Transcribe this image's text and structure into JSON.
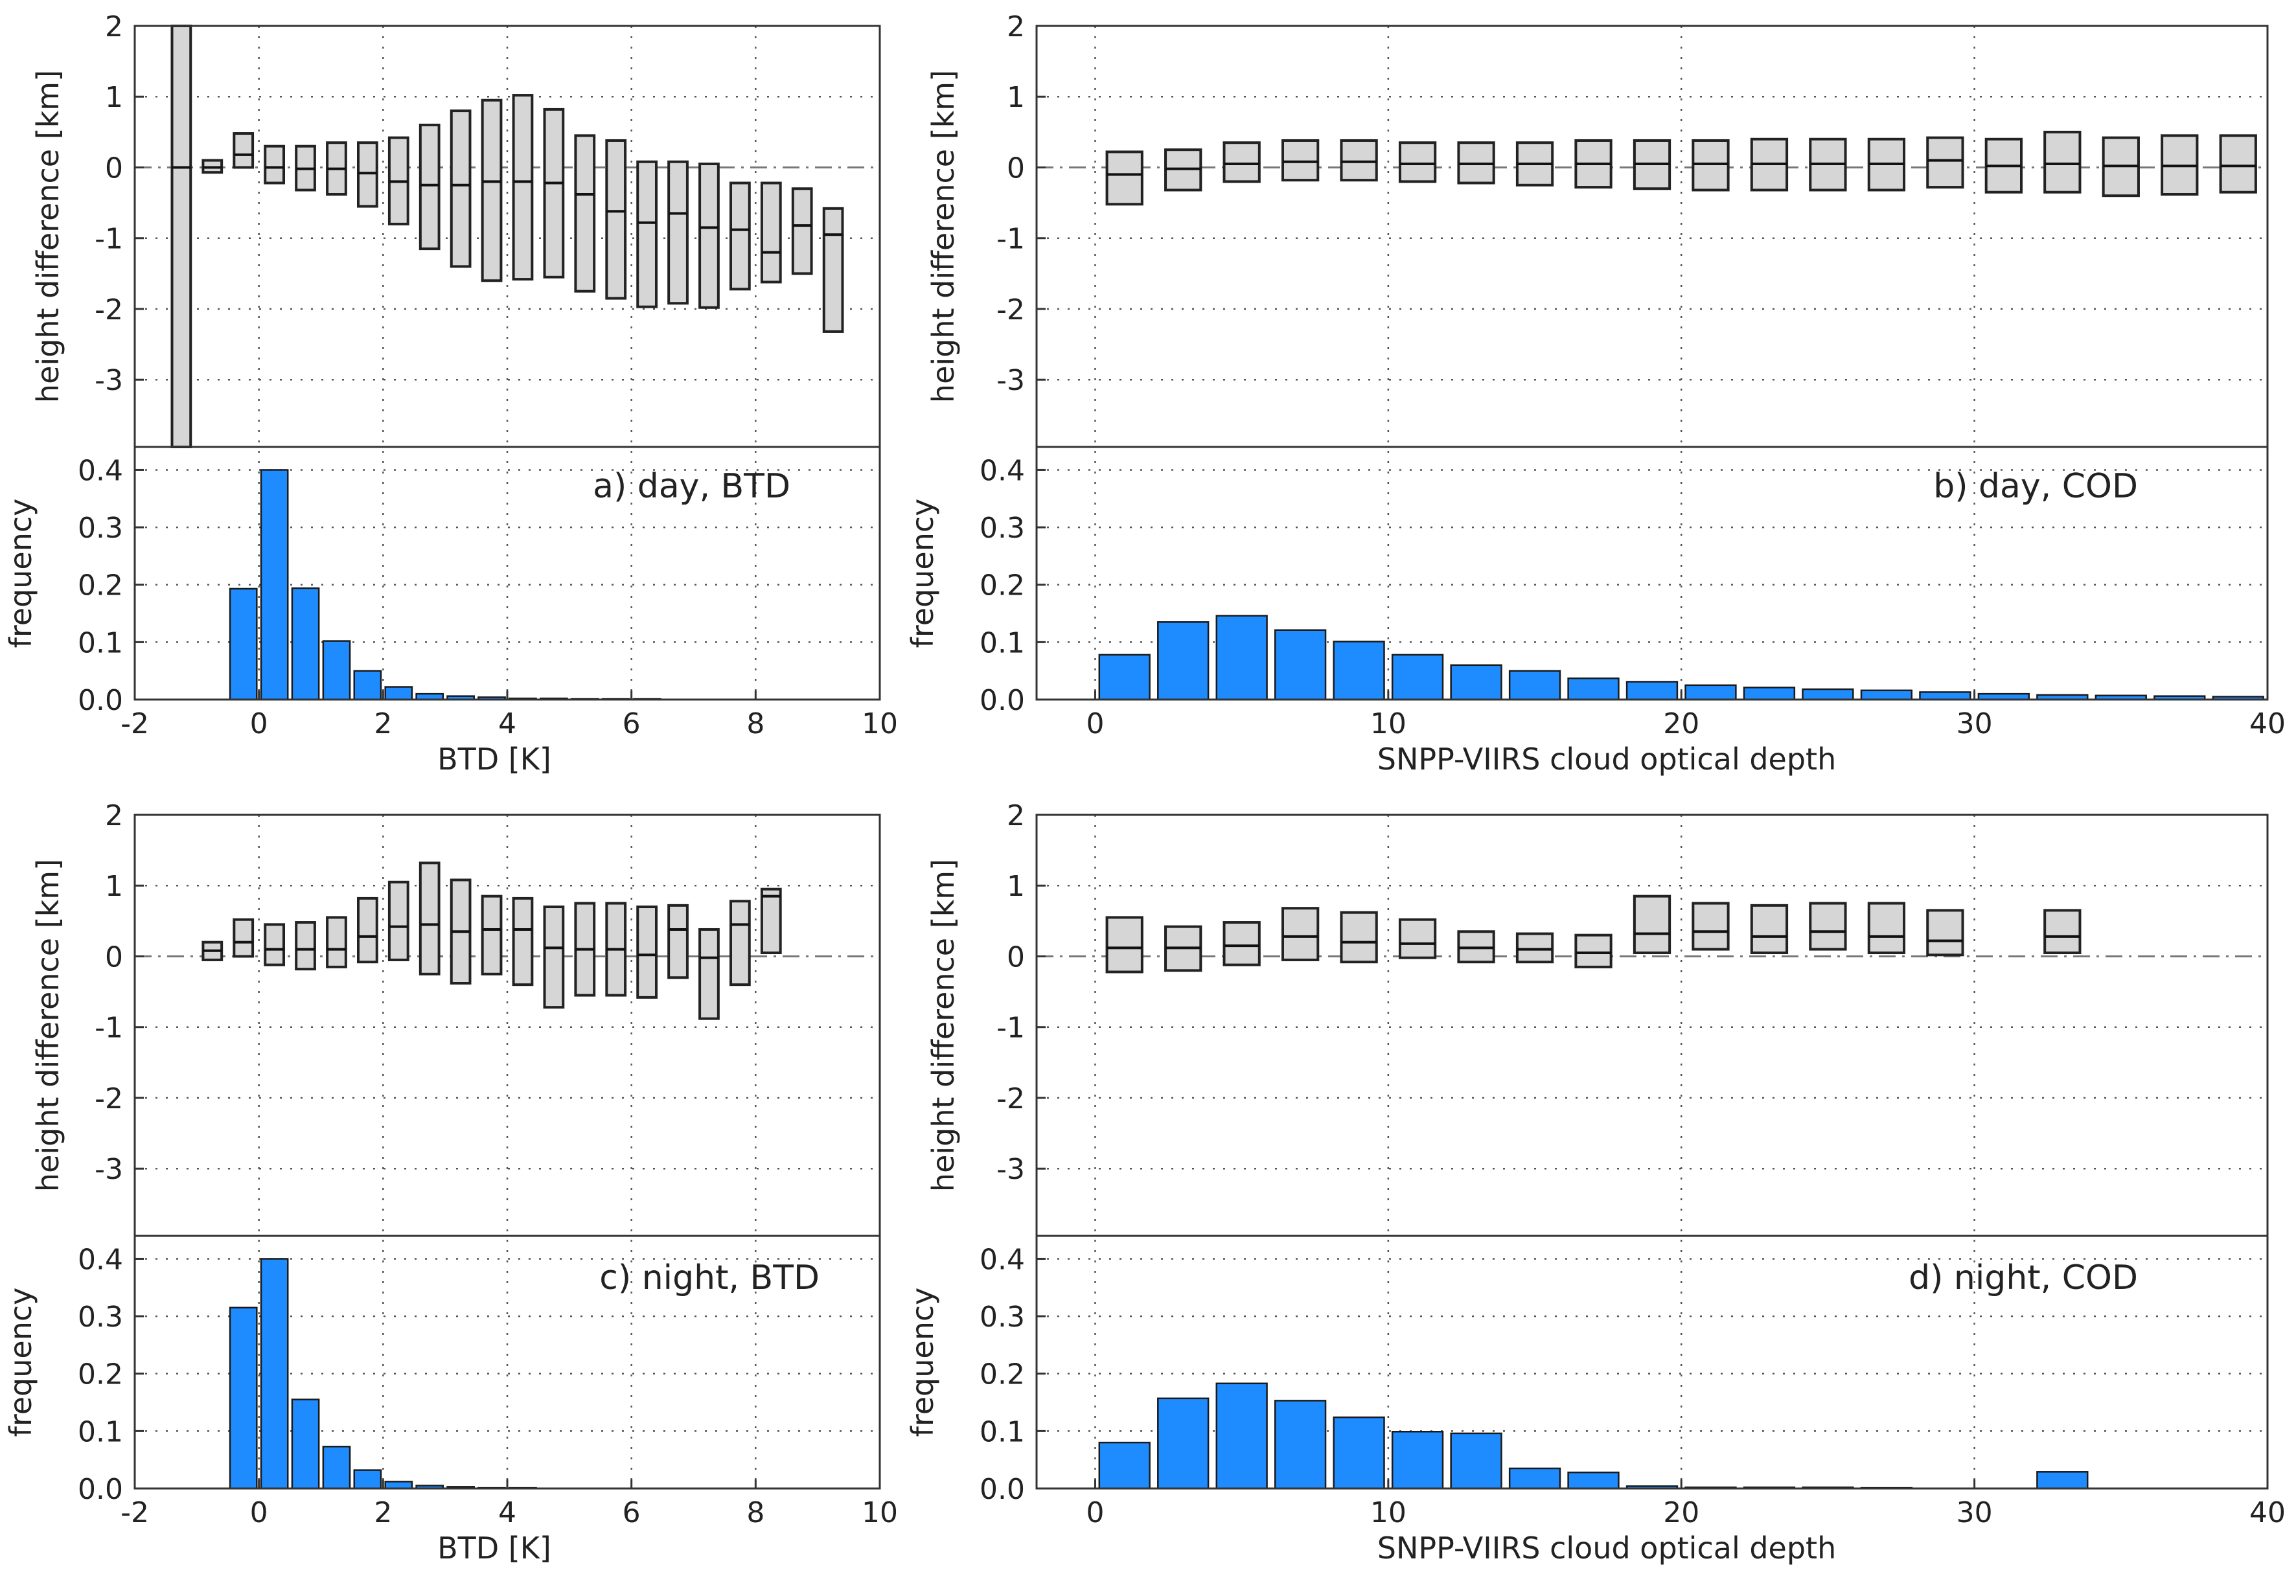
{
  "chart_data": [
    {
      "id": "a",
      "type": "bar",
      "panel_label": "a) day, BTD",
      "xlabel": "BTD [K]",
      "box_ylabel": "height difference [km]",
      "hist_ylabel": "frequency",
      "xlim": [
        -2,
        10
      ],
      "xticks": [
        -2,
        0,
        2,
        4,
        6,
        8,
        10
      ],
      "box_ylim": [
        -3.95,
        2
      ],
      "box_yticks": [
        -3,
        -2,
        -1,
        0,
        1,
        2
      ],
      "hist_ylim": [
        0,
        0.44
      ],
      "hist_yticks": [
        0.0,
        0.1,
        0.2,
        0.3,
        0.4
      ],
      "hist_ytick_labels": [
        "0.0",
        "0.1",
        "0.2",
        "0.3",
        "0.4"
      ],
      "bin_width": 0.5,
      "boxes": [
        {
          "x": -1.25,
          "q1": -4.0,
          "median": 0.0,
          "q3": 2.1
        },
        {
          "x": -0.75,
          "q1": -0.07,
          "median": 0.0,
          "q3": 0.1
        },
        {
          "x": -0.25,
          "q1": 0.0,
          "median": 0.18,
          "q3": 0.48
        },
        {
          "x": 0.25,
          "q1": -0.22,
          "median": 0.0,
          "q3": 0.3
        },
        {
          "x": 0.75,
          "q1": -0.32,
          "median": -0.02,
          "q3": 0.3
        },
        {
          "x": 1.25,
          "q1": -0.38,
          "median": -0.02,
          "q3": 0.35
        },
        {
          "x": 1.75,
          "q1": -0.55,
          "median": -0.08,
          "q3": 0.35
        },
        {
          "x": 2.25,
          "q1": -0.8,
          "median": -0.2,
          "q3": 0.42
        },
        {
          "x": 2.75,
          "q1": -1.15,
          "median": -0.25,
          "q3": 0.6
        },
        {
          "x": 3.25,
          "q1": -1.4,
          "median": -0.25,
          "q3": 0.8
        },
        {
          "x": 3.75,
          "q1": -1.6,
          "median": -0.2,
          "q3": 0.95
        },
        {
          "x": 4.25,
          "q1": -1.58,
          "median": -0.2,
          "q3": 1.02
        },
        {
          "x": 4.75,
          "q1": -1.55,
          "median": -0.22,
          "q3": 0.82
        },
        {
          "x": 5.25,
          "q1": -1.75,
          "median": -0.38,
          "q3": 0.45
        },
        {
          "x": 5.75,
          "q1": -1.85,
          "median": -0.62,
          "q3": 0.38
        },
        {
          "x": 6.25,
          "q1": -1.97,
          "median": -0.78,
          "q3": 0.08
        },
        {
          "x": 6.75,
          "q1": -1.92,
          "median": -0.65,
          "q3": 0.08
        },
        {
          "x": 7.25,
          "q1": -1.98,
          "median": -0.85,
          "q3": 0.05
        },
        {
          "x": 7.75,
          "q1": -1.72,
          "median": -0.88,
          "q3": -0.22
        },
        {
          "x": 8.25,
          "q1": -1.62,
          "median": -1.2,
          "q3": -0.22
        },
        {
          "x": 8.75,
          "q1": -1.5,
          "median": -0.82,
          "q3": -0.3
        },
        {
          "x": 9.25,
          "q1": -2.32,
          "median": -0.95,
          "q3": -0.58
        }
      ],
      "bars": [
        {
          "x": -0.25,
          "value": 0.193
        },
        {
          "x": 0.25,
          "value": 0.4
        },
        {
          "x": 0.75,
          "value": 0.194
        },
        {
          "x": 1.25,
          "value": 0.102
        },
        {
          "x": 1.75,
          "value": 0.05
        },
        {
          "x": 2.25,
          "value": 0.022
        },
        {
          "x": 2.75,
          "value": 0.01
        },
        {
          "x": 3.25,
          "value": 0.006
        },
        {
          "x": 3.75,
          "value": 0.004
        },
        {
          "x": 4.25,
          "value": 0.002
        },
        {
          "x": 4.75,
          "value": 0.002
        },
        {
          "x": 5.25,
          "value": 0.001
        },
        {
          "x": 5.75,
          "value": 0.001
        },
        {
          "x": 6.25,
          "value": 0.001
        }
      ]
    },
    {
      "id": "b",
      "type": "bar",
      "panel_label": "b) day, COD",
      "xlabel": "SNPP-VIIRS cloud optical depth",
      "box_ylabel": "height difference [km]",
      "hist_ylabel": "frequency",
      "xlim": [
        -2,
        40
      ],
      "xticks": [
        0,
        10,
        20,
        30,
        40
      ],
      "box_ylim": [
        -3.95,
        2
      ],
      "box_yticks": [
        -3,
        -2,
        -1,
        0,
        1,
        2
      ],
      "hist_ylim": [
        0,
        0.44
      ],
      "hist_yticks": [
        0.0,
        0.1,
        0.2,
        0.3,
        0.4
      ],
      "hist_ytick_labels": [
        "0.0",
        "0.1",
        "0.2",
        "0.3",
        "0.4"
      ],
      "bin_width": 2,
      "boxes": [
        {
          "x": 1,
          "q1": -0.52,
          "median": -0.1,
          "q3": 0.22
        },
        {
          "x": 3,
          "q1": -0.32,
          "median": -0.02,
          "q3": 0.25
        },
        {
          "x": 5,
          "q1": -0.2,
          "median": 0.05,
          "q3": 0.35
        },
        {
          "x": 7,
          "q1": -0.18,
          "median": 0.08,
          "q3": 0.38
        },
        {
          "x": 9,
          "q1": -0.18,
          "median": 0.08,
          "q3": 0.38
        },
        {
          "x": 11,
          "q1": -0.2,
          "median": 0.05,
          "q3": 0.35
        },
        {
          "x": 13,
          "q1": -0.22,
          "median": 0.05,
          "q3": 0.35
        },
        {
          "x": 15,
          "q1": -0.25,
          "median": 0.05,
          "q3": 0.35
        },
        {
          "x": 17,
          "q1": -0.28,
          "median": 0.05,
          "q3": 0.38
        },
        {
          "x": 19,
          "q1": -0.3,
          "median": 0.05,
          "q3": 0.38
        },
        {
          "x": 21,
          "q1": -0.32,
          "median": 0.05,
          "q3": 0.38
        },
        {
          "x": 23,
          "q1": -0.32,
          "median": 0.05,
          "q3": 0.4
        },
        {
          "x": 25,
          "q1": -0.32,
          "median": 0.05,
          "q3": 0.4
        },
        {
          "x": 27,
          "q1": -0.32,
          "median": 0.05,
          "q3": 0.4
        },
        {
          "x": 29,
          "q1": -0.28,
          "median": 0.1,
          "q3": 0.42
        },
        {
          "x": 31,
          "q1": -0.35,
          "median": 0.02,
          "q3": 0.4
        },
        {
          "x": 33,
          "q1": -0.35,
          "median": 0.05,
          "q3": 0.5
        },
        {
          "x": 35,
          "q1": -0.4,
          "median": 0.02,
          "q3": 0.42
        },
        {
          "x": 37,
          "q1": -0.38,
          "median": 0.02,
          "q3": 0.45
        },
        {
          "x": 39,
          "q1": -0.35,
          "median": 0.02,
          "q3": 0.45
        }
      ],
      "bars": [
        {
          "x": 1,
          "value": 0.078
        },
        {
          "x": 3,
          "value": 0.135
        },
        {
          "x": 5,
          "value": 0.146
        },
        {
          "x": 7,
          "value": 0.121
        },
        {
          "x": 9,
          "value": 0.101
        },
        {
          "x": 11,
          "value": 0.078
        },
        {
          "x": 13,
          "value": 0.06
        },
        {
          "x": 15,
          "value": 0.05
        },
        {
          "x": 17,
          "value": 0.037
        },
        {
          "x": 19,
          "value": 0.031
        },
        {
          "x": 21,
          "value": 0.025
        },
        {
          "x": 23,
          "value": 0.021
        },
        {
          "x": 25,
          "value": 0.018
        },
        {
          "x": 27,
          "value": 0.016
        },
        {
          "x": 29,
          "value": 0.013
        },
        {
          "x": 31,
          "value": 0.01
        },
        {
          "x": 33,
          "value": 0.008
        },
        {
          "x": 35,
          "value": 0.007
        },
        {
          "x": 37,
          "value": 0.006
        },
        {
          "x": 39,
          "value": 0.005
        }
      ]
    },
    {
      "id": "c",
      "type": "bar",
      "panel_label": "c) night, BTD",
      "xlabel": "BTD [K]",
      "box_ylabel": "height difference [km]",
      "hist_ylabel": "frequency",
      "xlim": [
        -2,
        10
      ],
      "xticks": [
        -2,
        0,
        2,
        4,
        6,
        8,
        10
      ],
      "box_ylim": [
        -3.95,
        2
      ],
      "box_yticks": [
        -3,
        -2,
        -1,
        0,
        1,
        2
      ],
      "hist_ylim": [
        0,
        0.44
      ],
      "hist_yticks": [
        0.0,
        0.1,
        0.2,
        0.3,
        0.4
      ],
      "hist_ytick_labels": [
        "0.0",
        "0.1",
        "0.2",
        "0.3",
        "0.4"
      ],
      "bin_width": 0.5,
      "boxes": [
        {
          "x": -0.75,
          "q1": -0.05,
          "median": 0.08,
          "q3": 0.2
        },
        {
          "x": -0.25,
          "q1": 0.0,
          "median": 0.2,
          "q3": 0.52
        },
        {
          "x": 0.25,
          "q1": -0.12,
          "median": 0.1,
          "q3": 0.45
        },
        {
          "x": 0.75,
          "q1": -0.18,
          "median": 0.1,
          "q3": 0.48
        },
        {
          "x": 1.25,
          "q1": -0.15,
          "median": 0.1,
          "q3": 0.55
        },
        {
          "x": 1.75,
          "q1": -0.08,
          "median": 0.28,
          "q3": 0.82
        },
        {
          "x": 2.25,
          "q1": -0.05,
          "median": 0.42,
          "q3": 1.05
        },
        {
          "x": 2.75,
          "q1": -0.25,
          "median": 0.45,
          "q3": 1.32
        },
        {
          "x": 3.25,
          "q1": -0.38,
          "median": 0.35,
          "q3": 1.08
        },
        {
          "x": 3.75,
          "q1": -0.25,
          "median": 0.38,
          "q3": 0.85
        },
        {
          "x": 4.25,
          "q1": -0.4,
          "median": 0.38,
          "q3": 0.82
        },
        {
          "x": 4.75,
          "q1": -0.72,
          "median": 0.12,
          "q3": 0.7
        },
        {
          "x": 5.25,
          "q1": -0.55,
          "median": 0.1,
          "q3": 0.75
        },
        {
          "x": 5.75,
          "q1": -0.55,
          "median": 0.1,
          "q3": 0.75
        },
        {
          "x": 6.25,
          "q1": -0.58,
          "median": 0.02,
          "q3": 0.7
        },
        {
          "x": 6.75,
          "q1": -0.3,
          "median": 0.38,
          "q3": 0.72
        },
        {
          "x": 7.25,
          "q1": -0.88,
          "median": -0.02,
          "q3": 0.38
        },
        {
          "x": 7.75,
          "q1": -0.4,
          "median": 0.45,
          "q3": 0.78
        },
        {
          "x": 8.25,
          "q1": 0.05,
          "median": 0.85,
          "q3": 0.95
        }
      ],
      "bars": [
        {
          "x": -0.25,
          "value": 0.315
        },
        {
          "x": 0.25,
          "value": 0.4
        },
        {
          "x": 0.75,
          "value": 0.155
        },
        {
          "x": 1.25,
          "value": 0.073
        },
        {
          "x": 1.75,
          "value": 0.032
        },
        {
          "x": 2.25,
          "value": 0.012
        },
        {
          "x": 2.75,
          "value": 0.005
        },
        {
          "x": 3.25,
          "value": 0.003
        },
        {
          "x": 3.75,
          "value": 0.001
        },
        {
          "x": 4.25,
          "value": 0.001
        }
      ]
    },
    {
      "id": "d",
      "type": "bar",
      "panel_label": "d) night, COD",
      "xlabel": "SNPP-VIIRS cloud optical depth",
      "box_ylabel": "height difference [km]",
      "hist_ylabel": "frequency",
      "xlim": [
        -2,
        40
      ],
      "xticks": [
        0,
        10,
        20,
        30,
        40
      ],
      "box_ylim": [
        -3.95,
        2
      ],
      "box_yticks": [
        -3,
        -2,
        -1,
        0,
        1,
        2
      ],
      "hist_ylim": [
        0,
        0.44
      ],
      "hist_yticks": [
        0.0,
        0.1,
        0.2,
        0.3,
        0.4
      ],
      "hist_ytick_labels": [
        "0.0",
        "0.1",
        "0.2",
        "0.3",
        "0.4"
      ],
      "bin_width": 2,
      "boxes": [
        {
          "x": 1,
          "q1": -0.22,
          "median": 0.12,
          "q3": 0.55
        },
        {
          "x": 3,
          "q1": -0.2,
          "median": 0.12,
          "q3": 0.42
        },
        {
          "x": 5,
          "q1": -0.12,
          "median": 0.15,
          "q3": 0.48
        },
        {
          "x": 7,
          "q1": -0.05,
          "median": 0.28,
          "q3": 0.68
        },
        {
          "x": 9,
          "q1": -0.08,
          "median": 0.2,
          "q3": 0.62
        },
        {
          "x": 11,
          "q1": -0.02,
          "median": 0.18,
          "q3": 0.52
        },
        {
          "x": 13,
          "q1": -0.08,
          "median": 0.12,
          "q3": 0.35
        },
        {
          "x": 15,
          "q1": -0.08,
          "median": 0.1,
          "q3": 0.32
        },
        {
          "x": 17,
          "q1": -0.15,
          "median": 0.05,
          "q3": 0.3
        },
        {
          "x": 19,
          "q1": 0.05,
          "median": 0.32,
          "q3": 0.85
        },
        {
          "x": 21,
          "q1": 0.1,
          "median": 0.35,
          "q3": 0.75
        },
        {
          "x": 23,
          "q1": 0.05,
          "median": 0.28,
          "q3": 0.72
        },
        {
          "x": 25,
          "q1": 0.1,
          "median": 0.35,
          "q3": 0.75
        },
        {
          "x": 27,
          "q1": 0.05,
          "median": 0.28,
          "q3": 0.75
        },
        {
          "x": 29,
          "q1": 0.02,
          "median": 0.22,
          "q3": 0.65
        },
        {
          "x": 33,
          "q1": 0.05,
          "median": 0.28,
          "q3": 0.65
        }
      ],
      "bars": [
        {
          "x": 1,
          "value": 0.08
        },
        {
          "x": 3,
          "value": 0.157
        },
        {
          "x": 5,
          "value": 0.183
        },
        {
          "x": 7,
          "value": 0.153
        },
        {
          "x": 9,
          "value": 0.124
        },
        {
          "x": 11,
          "value": 0.099
        },
        {
          "x": 13,
          "value": 0.096
        },
        {
          "x": 15,
          "value": 0.035
        },
        {
          "x": 17,
          "value": 0.028
        },
        {
          "x": 19,
          "value": 0.004
        },
        {
          "x": 21,
          "value": 0.002
        },
        {
          "x": 23,
          "value": 0.002
        },
        {
          "x": 25,
          "value": 0.002
        },
        {
          "x": 27,
          "value": 0.001
        },
        {
          "x": 33,
          "value": 0.029
        }
      ]
    }
  ]
}
